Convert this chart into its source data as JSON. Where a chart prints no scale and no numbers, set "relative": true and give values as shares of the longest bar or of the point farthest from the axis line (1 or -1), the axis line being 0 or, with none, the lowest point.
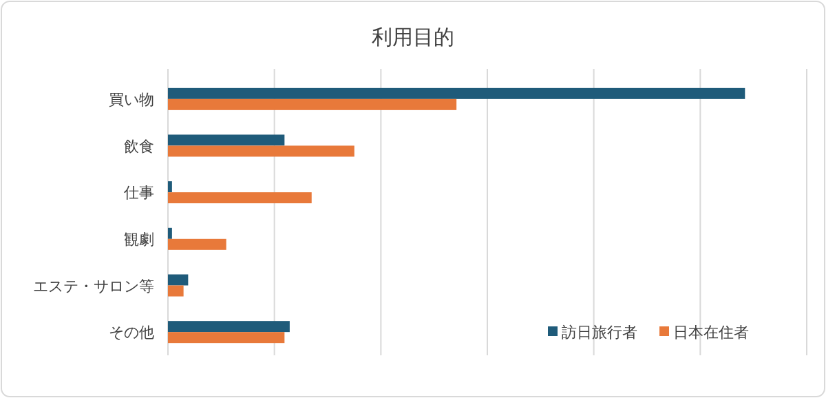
{
  "chart_data": {
    "type": "bar",
    "orientation": "horizontal",
    "relative": true,
    "title": "利用目的",
    "categories": [
      "買い物",
      "飲食",
      "仕事",
      "観劇",
      "エステ・サロン等",
      "その他"
    ],
    "series": [
      {
        "name": "訪日旅行者",
        "color": "#1f5b7a",
        "values": [
          1,
          0.202,
          0.007,
          0.007,
          0.035,
          0.211
        ]
      },
      {
        "name": "日本在住者",
        "color": "#e8793a",
        "values": [
          0.5,
          0.323,
          0.249,
          0.101,
          0.027,
          0.202
        ]
      }
    ],
    "grid": "x",
    "legend": "bottom right"
  }
}
